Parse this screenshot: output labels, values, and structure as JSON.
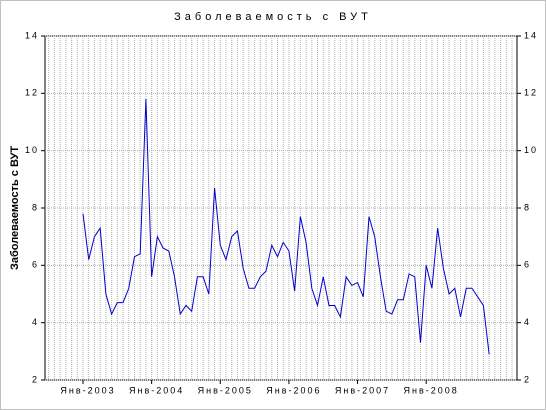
{
  "chart_data": {
    "type": "line",
    "title": "Заболеваемость с ВУТ",
    "y_label": "Заболеваемость с ВУТ",
    "categories": [
      "Янв-2003",
      null,
      null,
      null,
      null,
      null,
      null,
      null,
      null,
      null,
      null,
      null,
      "Янв-2004",
      null,
      null,
      null,
      null,
      null,
      null,
      null,
      null,
      null,
      null,
      null,
      "Янв-2005",
      null,
      null,
      null,
      null,
      null,
      null,
      null,
      null,
      null,
      null,
      null,
      "Янв-2006",
      null,
      null,
      null,
      null,
      null,
      null,
      null,
      null,
      null,
      null,
      null,
      "Янв-2007",
      null,
      null,
      null,
      null,
      null,
      null,
      null,
      null,
      null,
      null,
      null,
      "Янв-2008",
      null,
      null,
      null,
      null,
      null,
      null,
      null,
      null,
      null,
      null,
      null
    ],
    "series": [
      {
        "name": "Заболеваемость с ВУТ",
        "color": "#0000cc",
        "values": [
          7.8,
          6.2,
          7.0,
          7.3,
          5.0,
          4.3,
          4.7,
          4.7,
          5.2,
          6.3,
          6.4,
          11.8,
          5.6,
          7.0,
          6.6,
          6.5,
          5.6,
          4.3,
          4.6,
          4.4,
          5.6,
          5.6,
          5.0,
          8.7,
          6.7,
          6.2,
          7.0,
          7.2,
          5.9,
          5.2,
          5.2,
          5.6,
          5.8,
          6.7,
          6.3,
          6.8,
          6.5,
          5.1,
          7.7,
          6.8,
          5.2,
          4.6,
          5.6,
          4.6,
          4.6,
          4.2,
          5.6,
          5.3,
          5.4,
          4.9,
          7.7,
          7.0,
          5.6,
          4.4,
          4.3,
          4.8,
          4.8,
          5.7,
          5.6,
          3.3,
          6.0,
          5.2,
          7.3,
          5.9,
          5.0,
          5.2,
          4.2,
          5.2,
          5.2,
          4.9,
          4.6,
          2.9
        ]
      }
    ],
    "ylim": [
      2,
      14
    ],
    "yticks": [
      2,
      4,
      6,
      8,
      10,
      12,
      14
    ],
    "grid": true
  }
}
